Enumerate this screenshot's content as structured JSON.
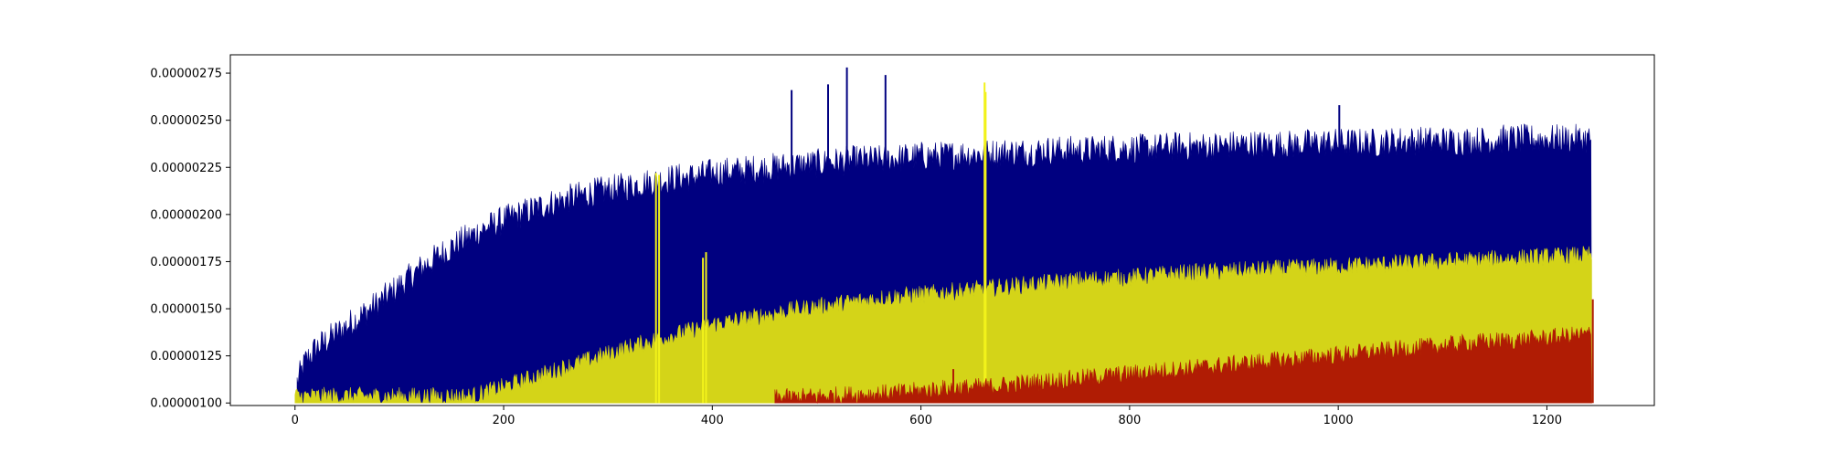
{
  "chart_data": {
    "type": "area",
    "title": "",
    "xlabel": "",
    "ylabel": "",
    "xlim": [
      -62,
      1303
    ],
    "ylim": [
      9.866e-07,
      2.8472e-06
    ],
    "xticks": [
      0,
      200,
      400,
      600,
      800,
      1000,
      1200
    ],
    "xtick_labels": [
      "0",
      "200",
      "400",
      "600",
      "800",
      "1000",
      "1200"
    ],
    "yticks": [
      1e-06,
      1.25e-06,
      1.5e-06,
      1.75e-06,
      2e-06,
      2.25e-06,
      2.5e-06,
      2.75e-06
    ],
    "ytick_labels": [
      "0.00000100",
      "0.00000125",
      "0.00000150",
      "0.00000175",
      "0.00000200",
      "0.00000225",
      "0.00000250",
      "0.00000275"
    ],
    "baseline": 1e-06,
    "grid": false,
    "legend": "none",
    "noise_note_free": true,
    "series": [
      {
        "color": "#000080",
        "x": [
          2,
          10,
          20,
          40,
          60,
          80,
          100,
          120,
          140,
          160,
          180,
          200,
          220,
          240,
          260,
          280,
          300,
          320,
          340,
          360,
          380,
          400,
          420,
          440,
          460,
          480,
          500,
          520,
          540,
          560,
          580,
          600,
          620,
          640,
          660,
          680,
          700,
          720,
          740,
          760,
          780,
          800,
          820,
          840,
          860,
          880,
          900,
          920,
          940,
          960,
          980,
          1000,
          1020,
          1040,
          1060,
          1080,
          1100,
          1120,
          1140,
          1160,
          1180,
          1200,
          1220,
          1243
        ],
        "values": [
          1.07e-06,
          1.18e-06,
          1.25e-06,
          1.33e-06,
          1.41e-06,
          1.49e-06,
          1.58e-06,
          1.67e-06,
          1.75e-06,
          1.82e-06,
          1.88e-06,
          1.93e-06,
          1.97e-06,
          2.01e-06,
          2.04e-06,
          2.07e-06,
          2.09e-06,
          2.11e-06,
          2.13e-06,
          2.15e-06,
          2.16e-06,
          2.18e-06,
          2.19e-06,
          2.2e-06,
          2.21e-06,
          2.22e-06,
          2.23e-06,
          2.24e-06,
          2.25e-06,
          2.25e-06,
          2.26e-06,
          2.27e-06,
          2.27e-06,
          2.28e-06,
          2.28e-06,
          2.29e-06,
          2.29e-06,
          2.3e-06,
          2.3e-06,
          2.3e-06,
          2.31e-06,
          2.31e-06,
          2.31e-06,
          2.32e-06,
          2.32e-06,
          2.32e-06,
          2.33e-06,
          2.33e-06,
          2.33e-06,
          2.33e-06,
          2.34e-06,
          2.34e-06,
          2.34e-06,
          2.34e-06,
          2.35e-06,
          2.35e-06,
          2.35e-06,
          2.35e-06,
          2.35e-06,
          2.36e-06,
          2.36e-06,
          2.36e-06,
          2.36e-06,
          2.36e-06
        ],
        "spikes": [
          {
            "x": 476,
            "y": 2.66e-06
          },
          {
            "x": 511,
            "y": 2.69e-06
          },
          {
            "x": 529,
            "y": 2.78e-06
          },
          {
            "x": 566,
            "y": 2.74e-06
          },
          {
            "x": 1001,
            "y": 2.58e-06
          }
        ]
      },
      {
        "color": "#d4d418",
        "x": [
          0,
          100,
          140,
          170,
          200,
          240,
          280,
          320,
          360,
          400,
          440,
          480,
          520,
          560,
          600,
          640,
          680,
          720,
          760,
          800,
          840,
          880,
          920,
          960,
          1000,
          1040,
          1080,
          1120,
          1160,
          1200,
          1243
        ],
        "values": [
          1.01e-06,
          1.01e-06,
          1.01e-06,
          1.01e-06,
          1.06e-06,
          1.13e-06,
          1.2e-06,
          1.27e-06,
          1.33e-06,
          1.39e-06,
          1.43e-06,
          1.47e-06,
          1.5e-06,
          1.53e-06,
          1.55e-06,
          1.57e-06,
          1.59e-06,
          1.61e-06,
          1.63e-06,
          1.64e-06,
          1.66e-06,
          1.67e-06,
          1.68e-06,
          1.69e-06,
          1.7e-06,
          1.71e-06,
          1.72e-06,
          1.73e-06,
          1.74e-06,
          1.75e-06,
          1.76e-06
        ],
        "spikes": [
          {
            "x": 346,
            "y": 2.22e-06
          },
          {
            "x": 349,
            "y": 2.21e-06
          },
          {
            "x": 391,
            "y": 1.77e-06
          },
          {
            "x": 394,
            "y": 1.8e-06
          },
          {
            "x": 661,
            "y": 2.7e-06
          },
          {
            "x": 662,
            "y": 2.65e-06
          }
        ]
      },
      {
        "color": "#b01c04",
        "x": [
          460,
          500,
          540,
          580,
          620,
          660,
          700,
          740,
          780,
          820,
          860,
          900,
          940,
          980,
          1020,
          1060,
          1100,
          1140,
          1180,
          1220,
          1243
        ],
        "values": [
          1e-06,
          1.01e-06,
          1.02e-06,
          1.03e-06,
          1.05e-06,
          1.06e-06,
          1.08e-06,
          1.1e-06,
          1.12e-06,
          1.14e-06,
          1.16e-06,
          1.18e-06,
          1.2e-06,
          1.22e-06,
          1.24e-06,
          1.26e-06,
          1.28e-06,
          1.3e-06,
          1.31e-06,
          1.33e-06,
          1.34e-06
        ],
        "spikes": [
          {
            "x": 631,
            "y": 1.18e-06
          },
          {
            "x": 1244,
            "y": 1.55e-06
          }
        ]
      }
    ]
  }
}
